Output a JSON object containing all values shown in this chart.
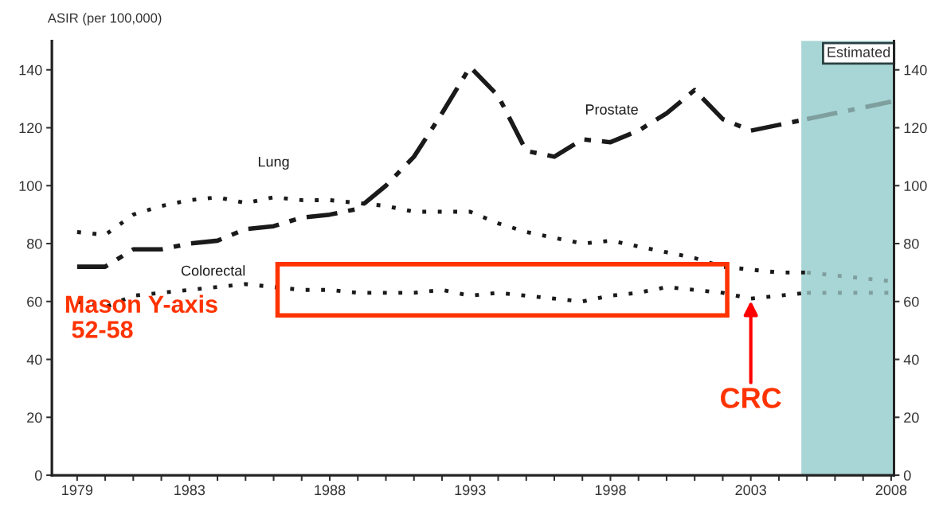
{
  "chart_data": {
    "type": "line",
    "ylabel": "ASIR (per 100,000)",
    "xlim": [
      1978.1,
      2008.1
    ],
    "ylim": [
      0,
      150
    ],
    "y2lim": [
      0,
      150
    ],
    "xticks": [
      1979,
      {
        "value": 1980,
        "label": null
      },
      {
        "value": 1981,
        "label": null
      },
      {
        "value": 1982,
        "label": null
      },
      1983,
      {
        "value": 1984,
        "label": null
      },
      {
        "value": 1985,
        "label": null
      },
      {
        "value": 1986,
        "label": null
      },
      {
        "value": 1987,
        "label": null
      },
      1988,
      {
        "value": 1989,
        "label": null
      },
      {
        "value": 1990,
        "label": null
      },
      {
        "value": 1991,
        "label": null
      },
      {
        "value": 1992,
        "label": null
      },
      1993,
      {
        "value": 1994,
        "label": null
      },
      {
        "value": 1995,
        "label": null
      },
      {
        "value": 1996,
        "label": null
      },
      {
        "value": 1997,
        "label": null
      },
      1998,
      {
        "value": 1999,
        "label": null
      },
      {
        "value": 2000,
        "label": null
      },
      {
        "value": 2001,
        "label": null
      },
      {
        "value": 2002,
        "label": null
      },
      2003,
      {
        "value": 2004,
        "label": null
      },
      {
        "value": 2005,
        "label": null
      },
      {
        "value": 2006,
        "label": null
      },
      {
        "value": 2007,
        "label": null
      },
      2008
    ],
    "yticks": [
      0,
      20,
      40,
      60,
      80,
      100,
      120,
      140
    ],
    "y2ticks": [
      0,
      20,
      40,
      60,
      80,
      100,
      120,
      140
    ],
    "grid": false,
    "legend": false,
    "marker": "none",
    "series": [
      {
        "name": "Prostate",
        "color": "#1a1a1a",
        "line_style": "dashed",
        "x": [
          1979,
          1980,
          1981,
          1982,
          1983,
          1984,
          1985,
          1986,
          1987,
          1988,
          1989,
          1990,
          1991,
          1992,
          1993,
          1994,
          1995,
          1996,
          1997,
          1998,
          1999,
          2000,
          2001,
          2002,
          2003,
          2004,
          2005
        ],
        "values": [
          72,
          72,
          78,
          78,
          80,
          81,
          85,
          86,
          89,
          90,
          92,
          100,
          110,
          125,
          141,
          131,
          112,
          110,
          116,
          115,
          119,
          125,
          133,
          123,
          119,
          121,
          123
        ]
      },
      {
        "name": "Lung",
        "color": "#1a1a1a",
        "line_style": "dotted",
        "x": [
          1979,
          1980,
          1981,
          1982,
          1983,
          1984,
          1985,
          1986,
          1987,
          1988,
          1989,
          1990,
          1991,
          1992,
          1993,
          1994,
          1995,
          1996,
          1997,
          1998,
          1999,
          2000,
          2001,
          2002,
          2003,
          2004,
          2005
        ],
        "values": [
          84,
          83,
          90,
          93,
          95,
          96,
          94,
          96,
          95,
          95,
          94,
          93,
          91,
          91,
          91,
          87,
          84,
          82,
          80,
          81,
          79,
          77,
          75,
          72,
          71,
          70,
          70
        ]
      },
      {
        "name": "Colorectal",
        "color": "#1a1a1a",
        "line_style": "dotted",
        "x": [
          1979,
          1980,
          1981,
          1982,
          1983,
          1984,
          1985,
          1986,
          1987,
          1988,
          1989,
          1990,
          1991,
          1992,
          1993,
          1994,
          1995,
          1996,
          1997,
          1998,
          1999,
          2000,
          2001,
          2002,
          2003,
          2004,
          2005
        ],
        "values": [
          60,
          58,
          62,
          63,
          64,
          65,
          66,
          65,
          64,
          64,
          63,
          63,
          63,
          64,
          62,
          63,
          62,
          61,
          60,
          62,
          63,
          65,
          64,
          63,
          61,
          62,
          63
        ]
      },
      {
        "color": "#7f9f9f",
        "line_style": "dashed",
        "x": [
          2005,
          2006,
          2007,
          2008
        ],
        "values": [
          123,
          125,
          127,
          129
        ]
      },
      {
        "color": "#7f9f9f",
        "line_style": "dotted",
        "x": [
          2005,
          2006,
          2007,
          2008
        ],
        "values": [
          70,
          69,
          68,
          67
        ]
      },
      {
        "color": "#7f9f9f",
        "line_style": "dotted",
        "x": [
          2005,
          2006,
          2007,
          2008
        ],
        "values": [
          63,
          63,
          63,
          63
        ]
      }
    ],
    "bands": [
      {
        "axis": "x",
        "from": 2004.8,
        "to": 2008.1,
        "label": "Estimated",
        "color": "#a8d5d5"
      }
    ],
    "annotations": [
      "Mason Y-axis\n 52-58",
      {
        "text": "CRC",
        "x": 2003,
        "y": 61
      }
    ]
  }
}
